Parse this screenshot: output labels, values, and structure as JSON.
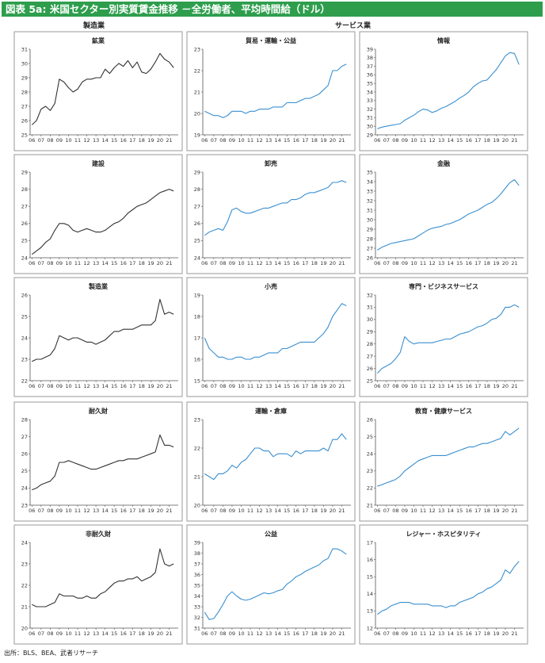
{
  "header": {
    "title": "図表 5a: 米国セクター別実質賃金推移 －全労働者、平均時間給（ドル）",
    "group_manufacturing": "製造業",
    "group_services": "サービス業"
  },
  "source_note": "出所：BLS、BEA、武者リサーチ",
  "colors": {
    "goods_line": "#333333",
    "services_line": "#3a8fd0",
    "title_bg": "#2e9e4d",
    "frame": "#999999"
  },
  "x_tick_labels": [
    "06",
    "07",
    "08",
    "09",
    "10",
    "11",
    "12",
    "13",
    "14",
    "15",
    "16",
    "17",
    "18",
    "19",
    "20",
    "21"
  ],
  "chart_data": [
    {
      "id": "mining",
      "type": "line",
      "title": "鉱業",
      "color_key": "goods_line",
      "ylim": [
        25,
        31
      ],
      "yticks": [
        25,
        26,
        27,
        28,
        29,
        30,
        31
      ],
      "x": [
        2006.0,
        2006.5,
        2007.0,
        2007.5,
        2008.0,
        2008.5,
        2009.0,
        2009.5,
        2010.0,
        2010.5,
        2011.0,
        2011.5,
        2012.0,
        2012.5,
        2013.0,
        2013.5,
        2014.0,
        2014.5,
        2015.0,
        2015.5,
        2016.0,
        2016.5,
        2017.0,
        2017.5,
        2018.0,
        2018.5,
        2019.0,
        2019.5,
        2020.0,
        2020.5,
        2021.0,
        2021.5
      ],
      "values": [
        25.7,
        26.0,
        26.8,
        27.0,
        26.7,
        27.2,
        28.9,
        28.7,
        28.3,
        28.0,
        28.2,
        28.7,
        28.9,
        28.9,
        29.0,
        29.0,
        29.6,
        29.3,
        29.7,
        30.0,
        29.8,
        30.2,
        29.7,
        30.1,
        29.4,
        29.3,
        29.6,
        30.1,
        30.7,
        30.3,
        30.1,
        29.7
      ]
    },
    {
      "id": "trade_transport_utilities",
      "type": "line",
      "title": "貿易・運輸・公益",
      "color_key": "services_line",
      "ylim": [
        19,
        23
      ],
      "yticks": [
        19,
        20,
        21,
        22,
        23
      ],
      "x": [
        2006.0,
        2006.5,
        2007.0,
        2007.5,
        2008.0,
        2008.5,
        2009.0,
        2009.5,
        2010.0,
        2010.5,
        2011.0,
        2011.5,
        2012.0,
        2012.5,
        2013.0,
        2013.5,
        2014.0,
        2014.5,
        2015.0,
        2015.5,
        2016.0,
        2016.5,
        2017.0,
        2017.5,
        2018.0,
        2018.5,
        2019.0,
        2019.5,
        2020.0,
        2020.5,
        2021.0,
        2021.5
      ],
      "values": [
        20.1,
        20.0,
        19.9,
        19.9,
        19.8,
        19.9,
        20.1,
        20.1,
        20.1,
        20.0,
        20.1,
        20.1,
        20.2,
        20.2,
        20.2,
        20.3,
        20.3,
        20.3,
        20.5,
        20.5,
        20.5,
        20.6,
        20.7,
        20.7,
        20.8,
        20.9,
        21.1,
        21.3,
        22.0,
        22.0,
        22.2,
        22.3
      ]
    },
    {
      "id": "information",
      "type": "line",
      "title": "情報",
      "color_key": "services_line",
      "ylim": [
        29,
        39
      ],
      "yticks": [
        29,
        30,
        31,
        32,
        33,
        34,
        35,
        36,
        37,
        38,
        39
      ],
      "x": [
        2006.0,
        2006.5,
        2007.0,
        2007.5,
        2008.0,
        2008.5,
        2009.0,
        2009.5,
        2010.0,
        2010.5,
        2011.0,
        2011.5,
        2012.0,
        2012.5,
        2013.0,
        2013.5,
        2014.0,
        2014.5,
        2015.0,
        2015.5,
        2016.0,
        2016.5,
        2017.0,
        2017.5,
        2018.0,
        2018.5,
        2019.0,
        2019.5,
        2020.0,
        2020.5,
        2021.0,
        2021.5
      ],
      "values": [
        29.7,
        29.9,
        30.0,
        30.1,
        30.2,
        30.3,
        30.7,
        31.0,
        31.3,
        31.7,
        32.0,
        31.9,
        31.6,
        31.8,
        32.1,
        32.3,
        32.6,
        32.9,
        33.3,
        33.6,
        34.0,
        34.6,
        35.0,
        35.3,
        35.4,
        36.0,
        36.6,
        37.4,
        38.2,
        38.6,
        38.5,
        37.2
      ]
    },
    {
      "id": "construction",
      "type": "line",
      "title": "建設",
      "color_key": "goods_line",
      "ylim": [
        24,
        29
      ],
      "yticks": [
        24,
        25,
        26,
        27,
        28,
        29
      ],
      "x": [
        2006.0,
        2006.5,
        2007.0,
        2007.5,
        2008.0,
        2008.5,
        2009.0,
        2009.5,
        2010.0,
        2010.5,
        2011.0,
        2011.5,
        2012.0,
        2012.5,
        2013.0,
        2013.5,
        2014.0,
        2014.5,
        2015.0,
        2015.5,
        2016.0,
        2016.5,
        2017.0,
        2017.5,
        2018.0,
        2018.5,
        2019.0,
        2019.5,
        2020.0,
        2020.5,
        2021.0,
        2021.5
      ],
      "values": [
        24.2,
        24.4,
        24.6,
        24.9,
        25.1,
        25.6,
        26.0,
        26.0,
        25.9,
        25.6,
        25.5,
        25.6,
        25.7,
        25.6,
        25.5,
        25.5,
        25.6,
        25.8,
        26.0,
        26.1,
        26.3,
        26.6,
        26.8,
        27.0,
        27.1,
        27.2,
        27.4,
        27.6,
        27.8,
        27.9,
        28.0,
        27.9
      ]
    },
    {
      "id": "wholesale",
      "type": "line",
      "title": "卸売",
      "color_key": "services_line",
      "ylim": [
        24,
        29
      ],
      "yticks": [
        24,
        25,
        26,
        27,
        28,
        29
      ],
      "x": [
        2006.0,
        2006.5,
        2007.0,
        2007.5,
        2008.0,
        2008.5,
        2009.0,
        2009.5,
        2010.0,
        2010.5,
        2011.0,
        2011.5,
        2012.0,
        2012.5,
        2013.0,
        2013.5,
        2014.0,
        2014.5,
        2015.0,
        2015.5,
        2016.0,
        2016.5,
        2017.0,
        2017.5,
        2018.0,
        2018.5,
        2019.0,
        2019.5,
        2020.0,
        2020.5,
        2021.0,
        2021.5
      ],
      "values": [
        25.3,
        25.5,
        25.6,
        25.7,
        25.6,
        26.1,
        26.8,
        26.9,
        26.7,
        26.6,
        26.6,
        26.7,
        26.8,
        26.9,
        26.9,
        27.0,
        27.1,
        27.2,
        27.2,
        27.4,
        27.4,
        27.5,
        27.7,
        27.8,
        27.8,
        27.9,
        28.0,
        28.1,
        28.4,
        28.4,
        28.5,
        28.4
      ]
    },
    {
      "id": "finance",
      "type": "line",
      "title": "金融",
      "color_key": "services_line",
      "ylim": [
        26,
        35
      ],
      "yticks": [
        26,
        27,
        28,
        29,
        30,
        31,
        32,
        33,
        34,
        35
      ],
      "x": [
        2006.0,
        2006.5,
        2007.0,
        2007.5,
        2008.0,
        2008.5,
        2009.0,
        2009.5,
        2010.0,
        2010.5,
        2011.0,
        2011.5,
        2012.0,
        2012.5,
        2013.0,
        2013.5,
        2014.0,
        2014.5,
        2015.0,
        2015.5,
        2016.0,
        2016.5,
        2017.0,
        2017.5,
        2018.0,
        2018.5,
        2019.0,
        2019.5,
        2020.0,
        2020.5,
        2021.0,
        2021.5
      ],
      "values": [
        26.8,
        27.1,
        27.3,
        27.5,
        27.6,
        27.7,
        27.8,
        27.9,
        28.0,
        28.3,
        28.6,
        28.9,
        29.1,
        29.2,
        29.3,
        29.5,
        29.6,
        29.8,
        30.0,
        30.3,
        30.6,
        30.8,
        31.0,
        31.3,
        31.6,
        31.8,
        32.2,
        32.7,
        33.3,
        33.9,
        34.2,
        33.6
      ]
    },
    {
      "id": "manufacturing",
      "type": "line",
      "title": "製造業",
      "color_key": "goods_line",
      "ylim": [
        22,
        26
      ],
      "yticks": [
        22,
        23,
        24,
        25,
        26
      ],
      "x": [
        2006.0,
        2006.5,
        2007.0,
        2007.5,
        2008.0,
        2008.5,
        2009.0,
        2009.5,
        2010.0,
        2010.5,
        2011.0,
        2011.5,
        2012.0,
        2012.5,
        2013.0,
        2013.5,
        2014.0,
        2014.5,
        2015.0,
        2015.5,
        2016.0,
        2016.5,
        2017.0,
        2017.5,
        2018.0,
        2018.5,
        2019.0,
        2019.5,
        2020.0,
        2020.5,
        2021.0,
        2021.5
      ],
      "values": [
        22.9,
        23.0,
        23.0,
        23.1,
        23.2,
        23.5,
        24.1,
        24.0,
        23.9,
        24.0,
        24.0,
        23.9,
        23.8,
        23.8,
        23.7,
        23.8,
        23.9,
        24.1,
        24.3,
        24.3,
        24.4,
        24.4,
        24.4,
        24.5,
        24.6,
        24.6,
        24.6,
        24.8,
        25.8,
        25.1,
        25.2,
        25.1
      ]
    },
    {
      "id": "retail",
      "type": "line",
      "title": "小売",
      "color_key": "services_line",
      "ylim": [
        15,
        19
      ],
      "yticks": [
        15,
        16,
        17,
        18,
        19
      ],
      "x": [
        2006.0,
        2006.5,
        2007.0,
        2007.5,
        2008.0,
        2008.5,
        2009.0,
        2009.5,
        2010.0,
        2010.5,
        2011.0,
        2011.5,
        2012.0,
        2012.5,
        2013.0,
        2013.5,
        2014.0,
        2014.5,
        2015.0,
        2015.5,
        2016.0,
        2016.5,
        2017.0,
        2017.5,
        2018.0,
        2018.5,
        2019.0,
        2019.5,
        2020.0,
        2020.5,
        2021.0,
        2021.5
      ],
      "values": [
        17.0,
        16.5,
        16.3,
        16.1,
        16.1,
        16.0,
        16.0,
        16.1,
        16.1,
        16.0,
        16.0,
        16.1,
        16.1,
        16.2,
        16.3,
        16.3,
        16.3,
        16.5,
        16.5,
        16.6,
        16.7,
        16.8,
        16.8,
        16.8,
        16.8,
        17.0,
        17.2,
        17.5,
        18.0,
        18.3,
        18.6,
        18.5
      ]
    },
    {
      "id": "professional_business",
      "type": "line",
      "title": "専門・ビジネスサービス",
      "color_key": "services_line",
      "ylim": [
        25,
        32
      ],
      "yticks": [
        25,
        26,
        27,
        28,
        29,
        30,
        31,
        32
      ],
      "x": [
        2006.0,
        2006.5,
        2007.0,
        2007.5,
        2008.0,
        2008.5,
        2009.0,
        2009.5,
        2010.0,
        2010.5,
        2011.0,
        2011.5,
        2012.0,
        2012.5,
        2013.0,
        2013.5,
        2014.0,
        2014.5,
        2015.0,
        2015.5,
        2016.0,
        2016.5,
        2017.0,
        2017.5,
        2018.0,
        2018.5,
        2019.0,
        2019.5,
        2020.0,
        2020.5,
        2021.0,
        2021.5
      ],
      "values": [
        25.6,
        26.0,
        26.2,
        26.4,
        26.8,
        27.3,
        28.6,
        28.2,
        28.0,
        28.1,
        28.1,
        28.1,
        28.1,
        28.2,
        28.3,
        28.4,
        28.4,
        28.6,
        28.8,
        28.9,
        29.0,
        29.2,
        29.4,
        29.5,
        29.7,
        30.0,
        30.1,
        30.4,
        31.0,
        31.0,
        31.2,
        31.0
      ]
    },
    {
      "id": "durable_goods",
      "type": "line",
      "title": "耐久財",
      "color_key": "goods_line",
      "ylim": [
        23,
        28
      ],
      "yticks": [
        23,
        24,
        25,
        26,
        27,
        28
      ],
      "x": [
        2006.0,
        2006.5,
        2007.0,
        2007.5,
        2008.0,
        2008.5,
        2009.0,
        2009.5,
        2010.0,
        2010.5,
        2011.0,
        2011.5,
        2012.0,
        2012.5,
        2013.0,
        2013.5,
        2014.0,
        2014.5,
        2015.0,
        2015.5,
        2016.0,
        2016.5,
        2017.0,
        2017.5,
        2018.0,
        2018.5,
        2019.0,
        2019.5,
        2020.0,
        2020.5,
        2021.0,
        2021.5
      ],
      "values": [
        23.9,
        24.0,
        24.2,
        24.3,
        24.4,
        24.7,
        25.5,
        25.5,
        25.6,
        25.5,
        25.4,
        25.3,
        25.2,
        25.1,
        25.1,
        25.2,
        25.3,
        25.4,
        25.5,
        25.6,
        25.6,
        25.7,
        25.7,
        25.7,
        25.8,
        25.9,
        26.0,
        26.1,
        27.1,
        26.5,
        26.5,
        26.4
      ]
    },
    {
      "id": "transport_warehousing",
      "type": "line",
      "title": "運輸・倉庫",
      "color_key": "services_line",
      "ylim": [
        20,
        23
      ],
      "yticks": [
        20,
        21,
        22,
        23
      ],
      "x": [
        2006.0,
        2006.5,
        2007.0,
        2007.5,
        2008.0,
        2008.5,
        2009.0,
        2009.5,
        2010.0,
        2010.5,
        2011.0,
        2011.5,
        2012.0,
        2012.5,
        2013.0,
        2013.5,
        2014.0,
        2014.5,
        2015.0,
        2015.5,
        2016.0,
        2016.5,
        2017.0,
        2017.5,
        2018.0,
        2018.5,
        2019.0,
        2019.5,
        2020.0,
        2020.5,
        2021.0,
        2021.5
      ],
      "values": [
        21.1,
        21.0,
        20.9,
        21.1,
        21.1,
        21.2,
        21.4,
        21.3,
        21.5,
        21.6,
        21.8,
        22.0,
        22.0,
        21.9,
        21.9,
        21.7,
        21.8,
        21.8,
        21.8,
        21.7,
        21.9,
        21.8,
        21.9,
        21.9,
        21.9,
        21.9,
        22.0,
        21.9,
        22.3,
        22.3,
        22.5,
        22.3
      ]
    },
    {
      "id": "education_health",
      "type": "line",
      "title": "教育・健康サービス",
      "color_key": "services_line",
      "ylim": [
        21,
        26
      ],
      "yticks": [
        21,
        22,
        23,
        24,
        25,
        26
      ],
      "x": [
        2006.0,
        2006.5,
        2007.0,
        2007.5,
        2008.0,
        2008.5,
        2009.0,
        2009.5,
        2010.0,
        2010.5,
        2011.0,
        2011.5,
        2012.0,
        2012.5,
        2013.0,
        2013.5,
        2014.0,
        2014.5,
        2015.0,
        2015.5,
        2016.0,
        2016.5,
        2017.0,
        2017.5,
        2018.0,
        2018.5,
        2019.0,
        2019.5,
        2020.0,
        2020.5,
        2021.0,
        2021.5
      ],
      "values": [
        22.1,
        22.2,
        22.3,
        22.4,
        22.5,
        22.7,
        23.0,
        23.2,
        23.4,
        23.6,
        23.7,
        23.8,
        23.9,
        23.9,
        23.9,
        23.9,
        24.0,
        24.1,
        24.2,
        24.3,
        24.4,
        24.4,
        24.5,
        24.6,
        24.6,
        24.7,
        24.8,
        24.9,
        25.3,
        25.1,
        25.3,
        25.5
      ]
    },
    {
      "id": "nondurable_goods",
      "type": "line",
      "title": "非耐久財",
      "color_key": "goods_line",
      "ylim": [
        20,
        24
      ],
      "yticks": [
        20,
        21,
        22,
        23,
        24
      ],
      "x": [
        2006.0,
        2006.5,
        2007.0,
        2007.5,
        2008.0,
        2008.5,
        2009.0,
        2009.5,
        2010.0,
        2010.5,
        2011.0,
        2011.5,
        2012.0,
        2012.5,
        2013.0,
        2013.5,
        2014.0,
        2014.5,
        2015.0,
        2015.5,
        2016.0,
        2016.5,
        2017.0,
        2017.5,
        2018.0,
        2018.5,
        2019.0,
        2019.5,
        2020.0,
        2020.5,
        2021.0,
        2021.5
      ],
      "values": [
        21.1,
        21.0,
        21.0,
        21.0,
        21.1,
        21.2,
        21.6,
        21.5,
        21.5,
        21.5,
        21.4,
        21.4,
        21.5,
        21.4,
        21.4,
        21.6,
        21.7,
        21.9,
        22.1,
        22.2,
        22.2,
        22.3,
        22.3,
        22.4,
        22.2,
        22.3,
        22.4,
        22.6,
        23.7,
        23.0,
        22.9,
        23.0
      ]
    },
    {
      "id": "utilities",
      "type": "line",
      "title": "公益",
      "color_key": "services_line",
      "ylim": [
        31,
        39
      ],
      "yticks": [
        31,
        32,
        33,
        34,
        35,
        36,
        37,
        38,
        39
      ],
      "x": [
        2006.0,
        2006.5,
        2007.0,
        2007.5,
        2008.0,
        2008.5,
        2009.0,
        2009.5,
        2010.0,
        2010.5,
        2011.0,
        2011.5,
        2012.0,
        2012.5,
        2013.0,
        2013.5,
        2014.0,
        2014.5,
        2015.0,
        2015.5,
        2016.0,
        2016.5,
        2017.0,
        2017.5,
        2018.0,
        2018.5,
        2019.0,
        2019.5,
        2020.0,
        2020.5,
        2021.0,
        2021.5
      ],
      "values": [
        32.5,
        31.8,
        31.9,
        32.5,
        33.2,
        34.0,
        34.4,
        34.0,
        33.7,
        33.6,
        33.7,
        33.9,
        34.1,
        34.3,
        34.2,
        34.3,
        34.5,
        34.6,
        35.1,
        35.4,
        35.8,
        36.0,
        36.3,
        36.5,
        36.7,
        36.9,
        37.3,
        37.5,
        38.4,
        38.4,
        38.2,
        37.9
      ]
    },
    {
      "id": "leisure_hospitality",
      "type": "line",
      "title": "レジャー・ホスピタリティ",
      "color_key": "services_line",
      "ylim": [
        12,
        17
      ],
      "yticks": [
        12,
        13,
        14,
        15,
        16,
        17
      ],
      "x": [
        2006.0,
        2006.5,
        2007.0,
        2007.5,
        2008.0,
        2008.5,
        2009.0,
        2009.5,
        2010.0,
        2010.5,
        2011.0,
        2011.5,
        2012.0,
        2012.5,
        2013.0,
        2013.5,
        2014.0,
        2014.5,
        2015.0,
        2015.5,
        2016.0,
        2016.5,
        2017.0,
        2017.5,
        2018.0,
        2018.5,
        2019.0,
        2019.5,
        2020.0,
        2020.5,
        2021.0,
        2021.5
      ],
      "values": [
        12.8,
        13.0,
        13.1,
        13.3,
        13.4,
        13.5,
        13.5,
        13.5,
        13.4,
        13.4,
        13.4,
        13.4,
        13.3,
        13.3,
        13.3,
        13.2,
        13.3,
        13.3,
        13.5,
        13.6,
        13.7,
        13.8,
        14.0,
        14.1,
        14.3,
        14.4,
        14.6,
        14.8,
        15.4,
        15.2,
        15.6,
        15.9
      ]
    }
  ]
}
